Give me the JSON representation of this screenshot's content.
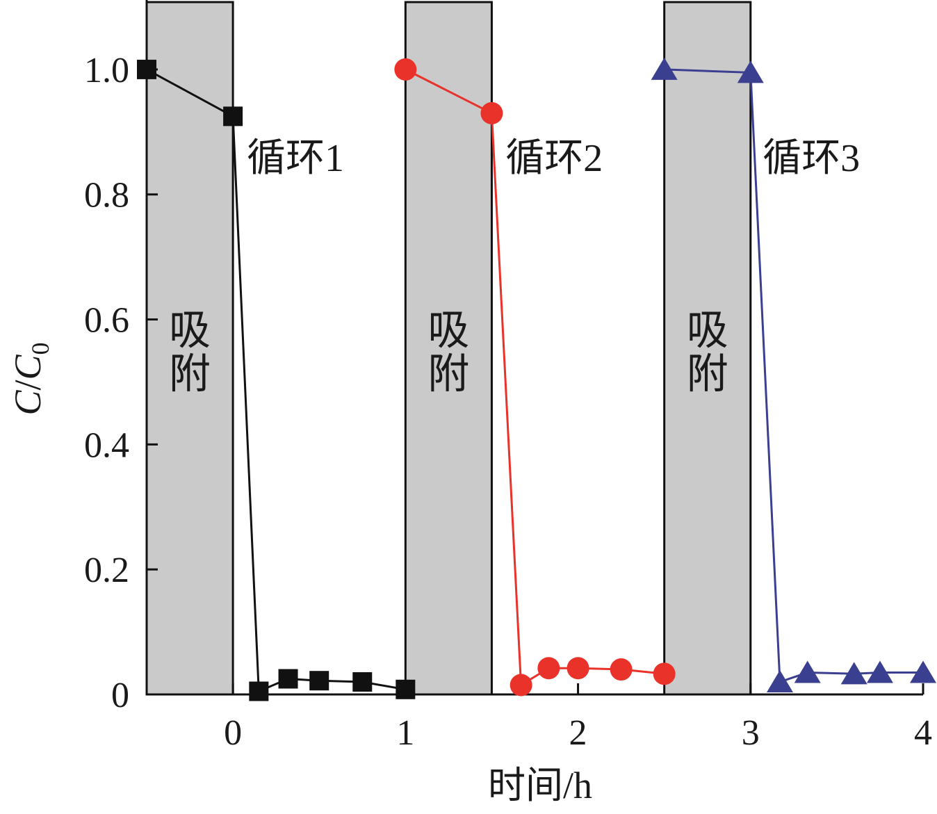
{
  "chart_data": {
    "type": "line",
    "xlabel": "时间/h",
    "ylabel": {
      "main": "C",
      "slash": "/",
      "sub_main": "C",
      "sub": "0"
    },
    "xlim": [
      -0.5,
      4
    ],
    "ylim": [
      0,
      1.1
    ],
    "x_ticks": [
      {
        "value": 0,
        "label": "0"
      },
      {
        "value": 1,
        "label": "1"
      },
      {
        "value": 2,
        "label": "2"
      },
      {
        "value": 3,
        "label": "3"
      },
      {
        "value": 4,
        "label": "4"
      }
    ],
    "y_ticks": [
      {
        "value": 0,
        "label": "0"
      },
      {
        "value": 0.2,
        "label": "0.2"
      },
      {
        "value": 0.4,
        "label": "0.4"
      },
      {
        "value": 0.6,
        "label": "0.6"
      },
      {
        "value": 0.8,
        "label": "0.8"
      },
      {
        "value": 1.0,
        "label": "1.0"
      }
    ],
    "bands": [
      {
        "x0": -0.5,
        "x1": 0,
        "label_top": "吸",
        "label_bottom": "附"
      },
      {
        "x0": 1,
        "x1": 1.5,
        "label_top": "吸",
        "label_bottom": "附"
      },
      {
        "x0": 2.5,
        "x1": 3,
        "label_top": "吸",
        "label_bottom": "附"
      }
    ],
    "series": [
      {
        "marker": "square",
        "color": "#111111",
        "points": [
          [
            -0.5,
            1.0
          ],
          [
            0.0,
            0.925
          ],
          [
            0.15,
            0.005
          ],
          [
            0.32,
            0.025
          ],
          [
            0.5,
            0.022
          ],
          [
            0.75,
            0.02
          ],
          [
            1.0,
            0.008
          ]
        ]
      },
      {
        "marker": "circle",
        "color": "#e8322a",
        "points": [
          [
            1.0,
            1.0
          ],
          [
            1.5,
            0.93
          ],
          [
            1.67,
            0.015
          ],
          [
            1.83,
            0.042
          ],
          [
            2.0,
            0.042
          ],
          [
            2.25,
            0.04
          ],
          [
            2.5,
            0.033
          ]
        ]
      },
      {
        "marker": "triangle",
        "color": "#3a3f8f",
        "points": [
          [
            2.5,
            1.0
          ],
          [
            3.0,
            0.995
          ],
          [
            3.17,
            0.02
          ],
          [
            3.33,
            0.035
          ],
          [
            3.6,
            0.033
          ],
          [
            3.75,
            0.035
          ],
          [
            4.0,
            0.035
          ]
        ]
      }
    ],
    "annotations": [
      {
        "text": "循环1",
        "x": 0.08,
        "y": 0.86
      },
      {
        "text": "循环2",
        "x": 1.58,
        "y": 0.86
      },
      {
        "text": "循环3",
        "x": 3.07,
        "y": 0.86
      }
    ]
  }
}
